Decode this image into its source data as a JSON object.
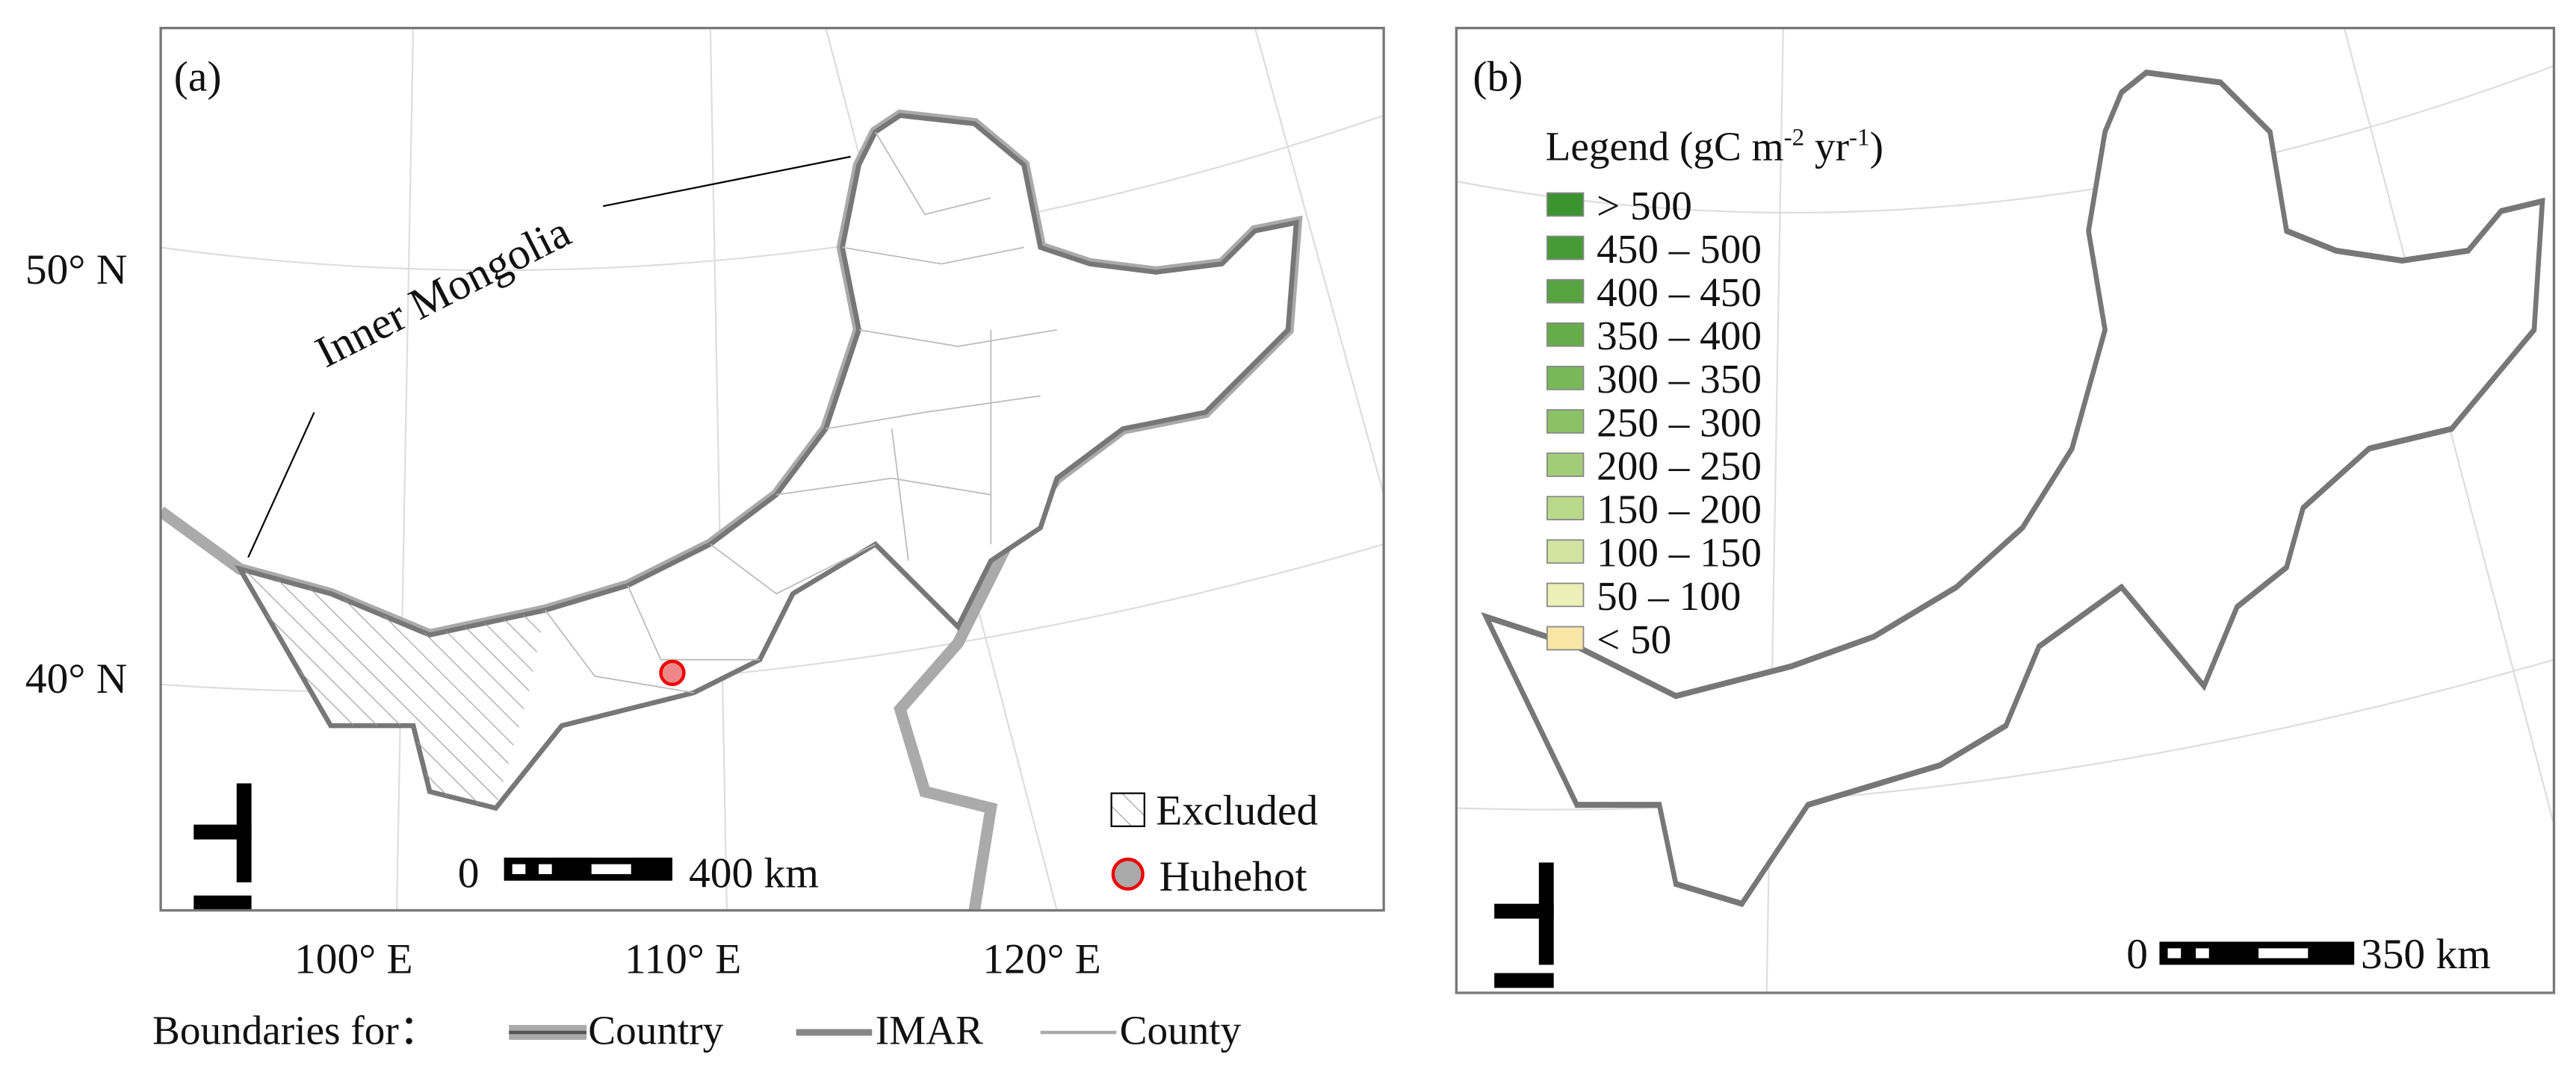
{
  "panels": [
    {
      "label": "(a)",
      "annotation": "Inner Mongolia",
      "lat_labels": [
        "50° N",
        "40° N"
      ],
      "lon_labels": [
        "100° E",
        "110° E",
        "120° E"
      ],
      "scale_bar": {
        "start": "0",
        "end": "400 km"
      },
      "legend": [
        "Excluded",
        "Huhehot"
      ]
    },
    {
      "label": "(b)",
      "legend_title": {
        "text": "Legend (gC m",
        "sup1": "-2",
        "mid": " yr",
        "sup2": "-1",
        "end": ")"
      },
      "legend_items": [
        {
          "label": "> 500",
          "color": "#3c9430"
        },
        {
          "label": "450 – 500",
          "color": "#479b36"
        },
        {
          "label": "400 – 450",
          "color": "#55a43f"
        },
        {
          "label": "350 – 400",
          "color": "#66ad4a"
        },
        {
          "label": "300 – 350",
          "color": "#79b858"
        },
        {
          "label": "250 – 300",
          "color": "#8cc266"
        },
        {
          "label": "200 – 250",
          "color": "#a2cd78"
        },
        {
          "label": "150 – 200",
          "color": "#b9d98b"
        },
        {
          "label": "100 – 150",
          "color": "#d2e4a0"
        },
        {
          "label": "50 – 100",
          "color": "#ecefb6"
        },
        {
          "label": "< 50",
          "color": "#f7e6a6"
        }
      ],
      "scale_bar": {
        "start": "0",
        "end": "350 km"
      }
    }
  ],
  "boundaries": {
    "title": "Boundaries for：",
    "items": [
      "Country",
      "IMAR",
      "County"
    ]
  }
}
